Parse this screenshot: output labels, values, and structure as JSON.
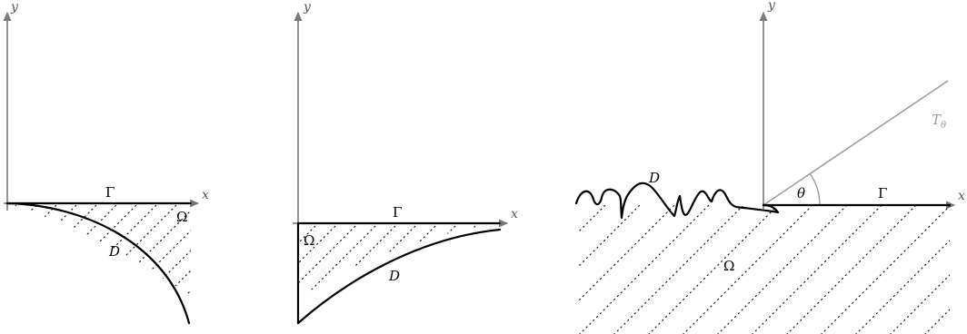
{
  "panels": [
    {
      "axes": {
        "x": "x",
        "y": "y"
      },
      "labels": {
        "gamma": "Γ",
        "omega": "Ω",
        "d": "D"
      }
    },
    {
      "axes": {
        "x": "x",
        "y": "y"
      },
      "labels": {
        "gamma": "Γ",
        "omega": "Ω",
        "d": "D"
      }
    },
    {
      "axes": {
        "x": "x",
        "y": "y"
      },
      "labels": {
        "gamma": "Γ",
        "omega": "Ω",
        "d": "D",
        "theta": "θ",
        "t_theta": "T",
        "t_theta_sub": "θ"
      }
    }
  ],
  "colors": {
    "axis": "#777777",
    "curve": "#000000",
    "ray": "#9a9a9a"
  }
}
